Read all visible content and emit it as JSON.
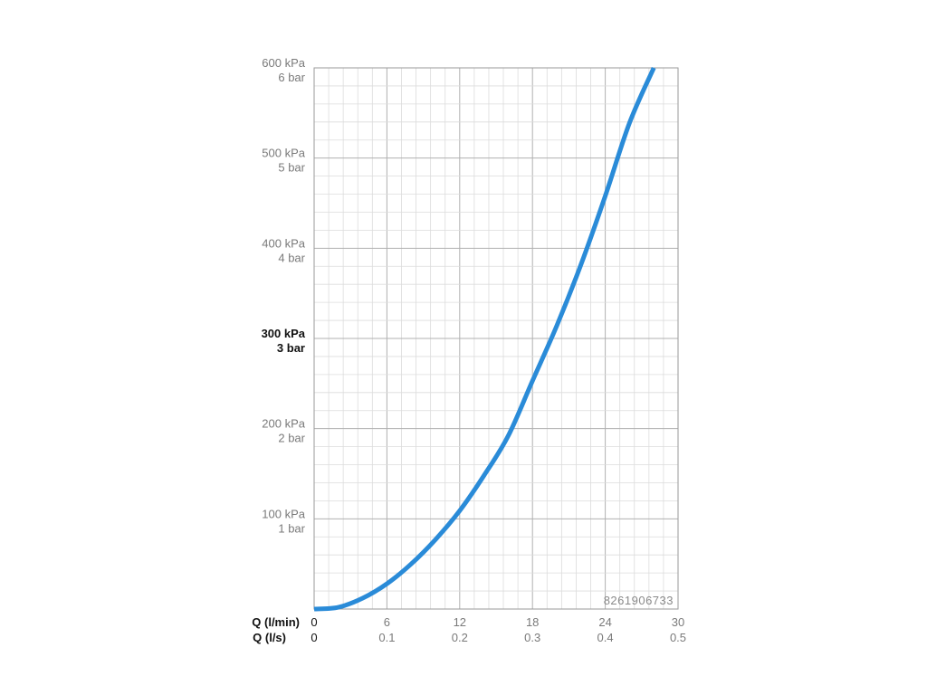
{
  "chart_data": {
    "type": "line",
    "x_label_primary": "Q (l/min)",
    "x_label_secondary": "Q (l/s)",
    "x_ticks_primary": [
      "0",
      "6",
      "12",
      "18",
      "24",
      "30"
    ],
    "x_ticks_secondary": [
      "0",
      "0.1",
      "0.2",
      "0.3",
      "0.4",
      "0.5"
    ],
    "xlim": [
      0,
      30
    ],
    "ylim": [
      0,
      600
    ],
    "y_ticks": [
      {
        "value": 100,
        "kpa": "100 kPa",
        "bar": "1 bar",
        "bold": false
      },
      {
        "value": 200,
        "kpa": "200 kPa",
        "bar": "2 bar",
        "bold": false
      },
      {
        "value": 300,
        "kpa": "300 kPa",
        "bar": "3 bar",
        "bold": true
      },
      {
        "value": 400,
        "kpa": "400 kPa",
        "bar": "4 bar",
        "bold": false
      },
      {
        "value": 500,
        "kpa": "500 kPa",
        "bar": "5 bar",
        "bold": false
      },
      {
        "value": 600,
        "kpa": "600 kPa",
        "bar": "6 bar",
        "bold": false
      }
    ],
    "grid": true,
    "series": [
      {
        "color": "#2a8bd8",
        "x": [
          0,
          2,
          4,
          6,
          8,
          10,
          12,
          14,
          16,
          18,
          20,
          22,
          24,
          26,
          28
        ],
        "y": [
          0,
          2,
          12,
          28,
          50,
          77,
          109,
          148,
          192,
          253,
          314,
          382,
          458,
          539,
          600
        ]
      }
    ]
  },
  "code_label": "8261906733"
}
